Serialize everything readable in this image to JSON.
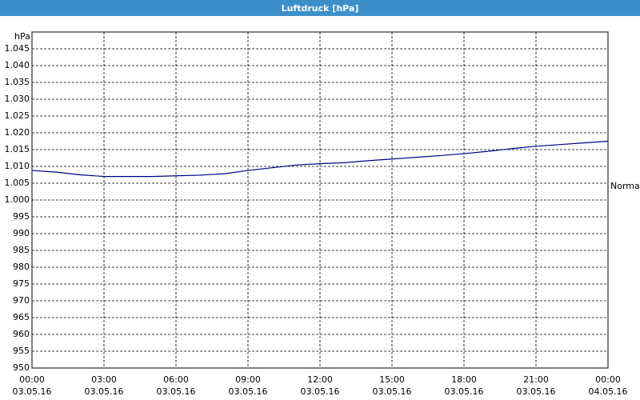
{
  "chart_data": {
    "type": "line",
    "title": "Luftdruck [hPa]",
    "y_unit": "hPa",
    "x": [
      0,
      1,
      2,
      3,
      4,
      5,
      6,
      7,
      8,
      9,
      10,
      11,
      12,
      13,
      14,
      15,
      16,
      17,
      18,
      19,
      20,
      21,
      22,
      23,
      24
    ],
    "series": [
      {
        "name": "Luftdruck",
        "color": "#00008b",
        "values": [
          1008.8,
          1008.3,
          1007.5,
          1007.0,
          1007.0,
          1007.0,
          1007.2,
          1007.4,
          1007.8,
          1008.8,
          1009.6,
          1010.4,
          1010.8,
          1011.1,
          1011.7,
          1012.2,
          1012.7,
          1013.2,
          1013.8,
          1014.5,
          1015.3,
          1016.0,
          1016.5,
          1017.0,
          1017.5
        ]
      }
    ],
    "xlim": [
      0,
      24
    ],
    "xticks": [
      {
        "value": 0,
        "label": "00:00"
      },
      {
        "value": 3,
        "label": "03:00"
      },
      {
        "value": 6,
        "label": "06:00"
      },
      {
        "value": 9,
        "label": "09:00"
      },
      {
        "value": 12,
        "label": "12:00"
      },
      {
        "value": 15,
        "label": "15:00"
      },
      {
        "value": 18,
        "label": "18:00"
      },
      {
        "value": 21,
        "label": "21:00"
      },
      {
        "value": 24,
        "label": "00:00"
      }
    ],
    "xtick_dates": [
      "03.05.16",
      "03.05.16",
      "03.05.16",
      "03.05.16",
      "03.05.16",
      "03.05.16",
      "03.05.16",
      "03.05.16",
      "04.05.16"
    ],
    "ylim": [
      950,
      1050
    ],
    "yticks": [
      950,
      955,
      960,
      965,
      970,
      975,
      980,
      985,
      990,
      995,
      {
        "value": 1000,
        "label": "1.000"
      },
      {
        "value": 1005,
        "label": "1.005"
      },
      {
        "value": 1010,
        "label": "1.010"
      },
      {
        "value": 1015,
        "label": "1.015"
      },
      {
        "value": 1020,
        "label": "1.020"
      },
      {
        "value": 1025,
        "label": "1.025"
      },
      {
        "value": 1030,
        "label": "1.030"
      },
      {
        "value": 1035,
        "label": "1.035"
      },
      {
        "value": 1040,
        "label": "1.040"
      },
      {
        "value": 1045,
        "label": "1.045"
      }
    ],
    "reference": {
      "label": "Normal",
      "value": 1004
    },
    "grid": true
  }
}
